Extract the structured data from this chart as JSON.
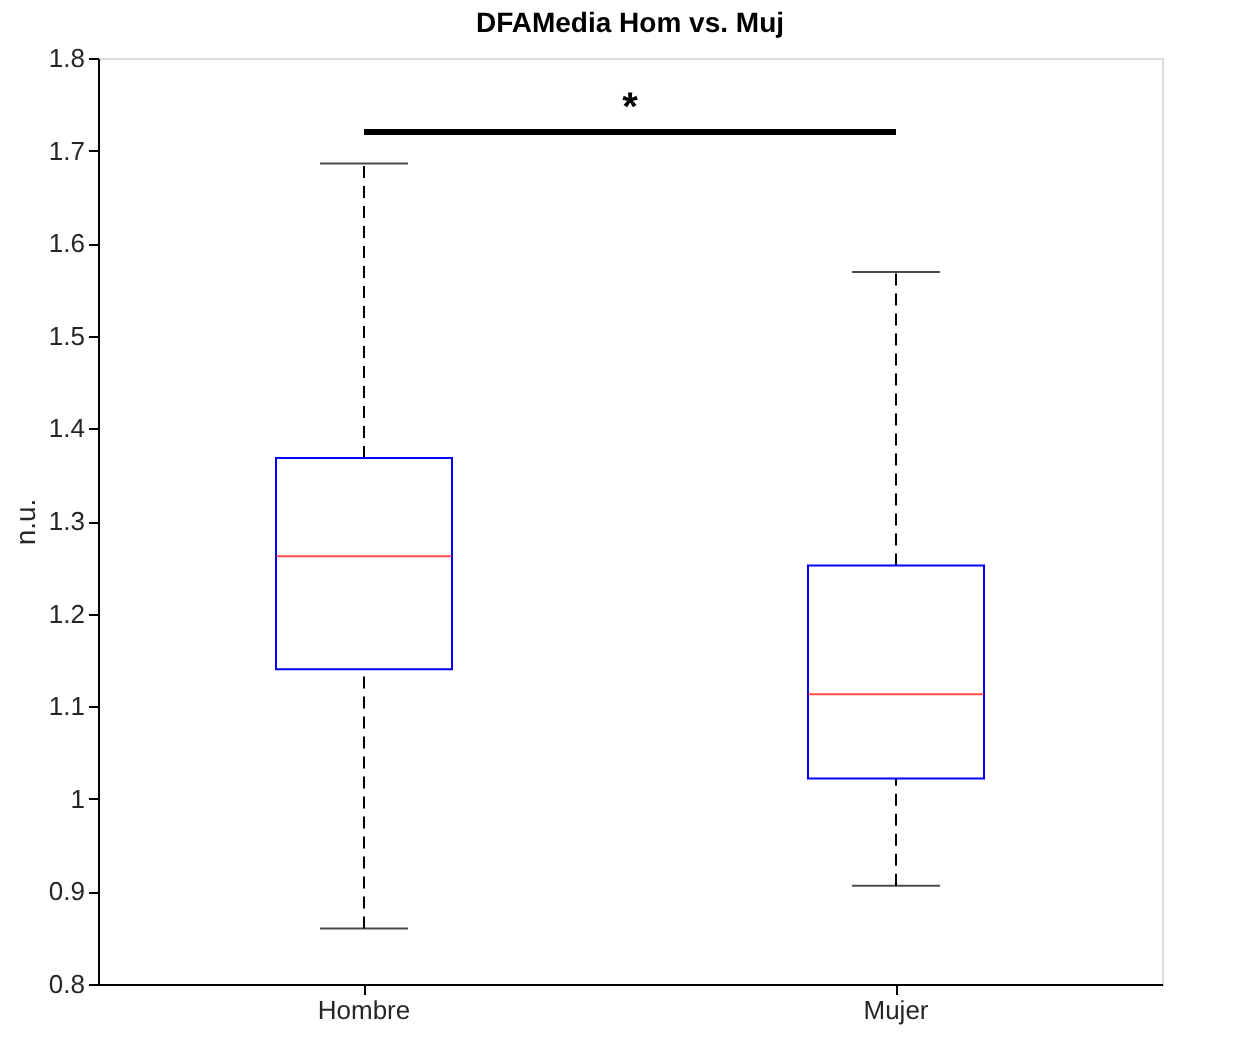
{
  "chart_data": {
    "type": "box",
    "title": "DFAMedia Hom vs. Muj",
    "ylabel": "n.u.",
    "categories": [
      "Hombre",
      "Mujer"
    ],
    "boxes": [
      {
        "low": 0.86,
        "q1": 1.14,
        "median": 1.262,
        "q3": 1.368,
        "high": 1.686
      },
      {
        "low": 0.906,
        "q1": 1.022,
        "median": 1.113,
        "q3": 1.252,
        "high": 1.569
      }
    ],
    "color": "#0000ff",
    "ylim": [
      0.8,
      1.8
    ],
    "yticks": [
      0.8,
      0.9,
      1,
      1.1,
      1.2,
      1.3,
      1.4,
      1.5,
      1.6,
      1.7,
      1.8
    ],
    "grid": false,
    "annotations": [
      "*"
    ]
  }
}
